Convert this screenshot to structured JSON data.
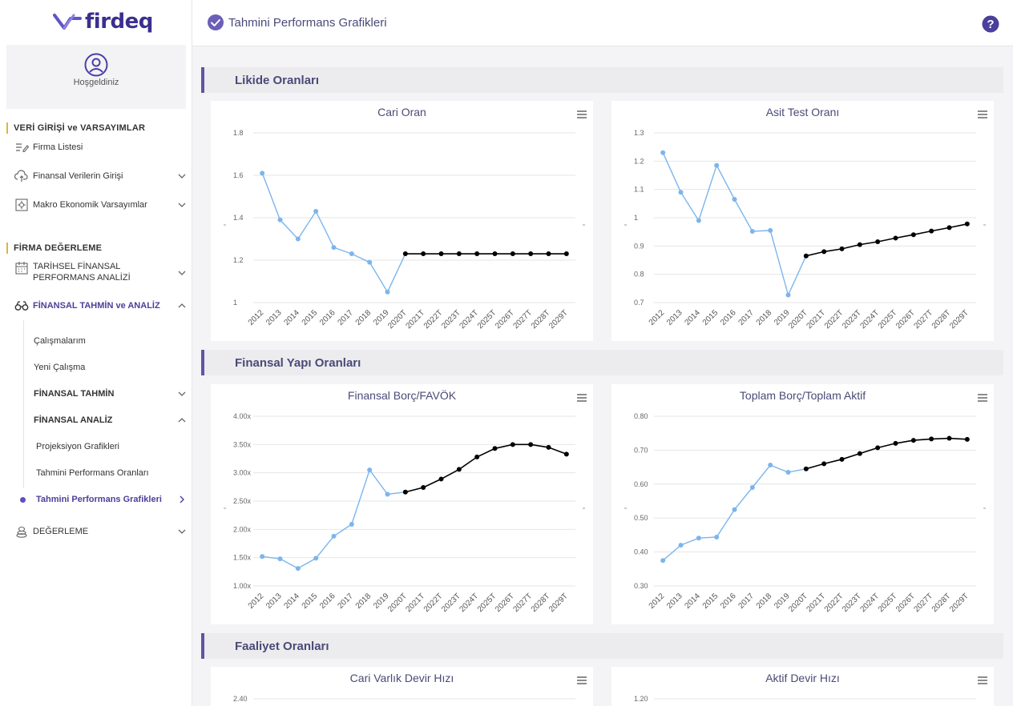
{
  "app": {
    "logo_text": "firdeq"
  },
  "sidebar": {
    "welcome": "Hoşgeldiniz",
    "sections": [
      {
        "label": "VERİ GİRİŞİ ve VARSAYIMLAR"
      },
      {
        "label": "FİRMA DEĞERLEME"
      }
    ],
    "items": [
      {
        "label": "Firma Listesi",
        "icon": "list-edit-icon"
      },
      {
        "label": "Finansal Verilerin Girişi",
        "icon": "cloud-upload-icon"
      },
      {
        "label": "Makro Ekonomik Varsayımlar",
        "icon": "chart-settings-icon"
      },
      {
        "label": "TARİHSEL FİNANSAL PERFORMANS ANALİZİ",
        "icon": "calendar-icon"
      },
      {
        "label": "FİNANSAL TAHMİN ve ANALİZ",
        "icon": "binoculars-icon"
      },
      {
        "label": "DEĞERLEME",
        "icon": "coins-icon"
      }
    ],
    "sub_items": [
      {
        "label": "Çalışmalarım"
      },
      {
        "label": "Yeni Çalışma"
      },
      {
        "label": "FİNANSAL TAHMİN"
      },
      {
        "label": "FİNANSAL ANALİZ"
      },
      {
        "label": "Projeksiyon Grafikleri"
      },
      {
        "label": "Tahmini Performans Oranları"
      },
      {
        "label": "Tahmini Performans Grafikleri"
      }
    ]
  },
  "header": {
    "title": "Tahmini Performans Grafikleri"
  },
  "sections": [
    {
      "title": "Likide Oranları"
    },
    {
      "title": "Finansal Yapı Oranları"
    },
    {
      "title": "Faaliyet Oranları"
    }
  ],
  "colors": {
    "accent": "#5f55a5",
    "historical": "#7cb5ec",
    "forecast": "#000000",
    "section_marker": "#e3b23c"
  },
  "chart_data": [
    {
      "type": "line",
      "title": "Cari Oran",
      "categories": [
        "2012",
        "2013",
        "2014",
        "2015",
        "2016",
        "2017",
        "2018",
        "2019",
        "2020T",
        "2021T",
        "2022T",
        "2023T",
        "2024T",
        "2025T",
        "2026T",
        "2027T",
        "2028T",
        "2029T"
      ],
      "series": [
        {
          "values": [
            1.61,
            1.39,
            1.3,
            1.43,
            1.26,
            1.23,
            1.19,
            1.05,
            1.23,
            null,
            null,
            null,
            null,
            null,
            null,
            null,
            null,
            null
          ]
        },
        {
          "values": [
            null,
            null,
            null,
            null,
            null,
            null,
            null,
            null,
            1.23,
            1.23,
            1.23,
            1.23,
            1.23,
            1.23,
            1.23,
            1.23,
            1.23,
            1.23
          ]
        }
      ],
      "yticks": [
        "1",
        "1.2",
        "1.4",
        "1.6",
        "1.8"
      ],
      "ylim": [
        1,
        1.8
      ]
    },
    {
      "type": "line",
      "title": "Asit Test Oranı",
      "categories": [
        "2012",
        "2013",
        "2014",
        "2015",
        "2016",
        "2017",
        "2018",
        "2019",
        "2020T",
        "2021T",
        "2022T",
        "2023T",
        "2024T",
        "2025T",
        "2026T",
        "2027T",
        "2028T",
        "2029T"
      ],
      "series": [
        {
          "values": [
            1.23,
            1.09,
            0.99,
            1.185,
            1.065,
            0.952,
            0.955,
            0.727,
            0.865,
            null,
            null,
            null,
            null,
            null,
            null,
            null,
            null,
            null
          ]
        },
        {
          "values": [
            null,
            null,
            null,
            null,
            null,
            null,
            null,
            null,
            0.865,
            0.88,
            0.89,
            0.905,
            0.915,
            0.928,
            0.94,
            0.953,
            0.965,
            0.978
          ]
        }
      ],
      "yticks": [
        "0.7",
        "0.8",
        "0.9",
        "1",
        "1.1",
        "1.2",
        "1.3"
      ],
      "ylim": [
        0.7,
        1.3
      ]
    },
    {
      "type": "line",
      "title": "Finansal Borç/FAVÖK",
      "categories": [
        "2012",
        "2013",
        "2014",
        "2015",
        "2016",
        "2017",
        "2018",
        "2019",
        "2020T",
        "2021T",
        "2022T",
        "2023T",
        "2024T",
        "2025T",
        "2026T",
        "2027T",
        "2028T",
        "2029T"
      ],
      "series": [
        {
          "values": [
            1.52,
            1.48,
            1.31,
            1.49,
            1.88,
            2.09,
            3.05,
            2.62,
            2.66,
            null,
            null,
            null,
            null,
            null,
            null,
            null,
            null,
            null
          ]
        },
        {
          "values": [
            null,
            null,
            null,
            null,
            null,
            null,
            null,
            null,
            2.66,
            2.74,
            2.89,
            3.06,
            3.28,
            3.43,
            3.5,
            3.5,
            3.45,
            3.33
          ]
        }
      ],
      "yticks": [
        "1.00x",
        "1.50x",
        "2.00x",
        "2.50x",
        "3.00x",
        "3.50x",
        "4.00x"
      ],
      "ylim": [
        1,
        4
      ]
    },
    {
      "type": "line",
      "title": "Toplam Borç/Toplam Aktif",
      "categories": [
        "2012",
        "2013",
        "2014",
        "2015",
        "2016",
        "2017",
        "2018",
        "2019",
        "2020T",
        "2021T",
        "2022T",
        "2023T",
        "2024T",
        "2025T",
        "2026T",
        "2027T",
        "2028T",
        "2029T"
      ],
      "series": [
        {
          "values": [
            0.375,
            0.42,
            0.441,
            0.444,
            0.525,
            0.59,
            0.656,
            0.635,
            0.645,
            null,
            null,
            null,
            null,
            null,
            null,
            null,
            null,
            null
          ]
        },
        {
          "values": [
            null,
            null,
            null,
            null,
            null,
            null,
            null,
            null,
            0.645,
            0.66,
            0.673,
            0.69,
            0.707,
            0.72,
            0.729,
            0.733,
            0.735,
            0.732
          ]
        }
      ],
      "yticks": [
        "0.30",
        "0.40",
        "0.50",
        "0.60",
        "0.70",
        "0.80"
      ],
      "ylim": [
        0.3,
        0.8
      ]
    },
    {
      "type": "line",
      "title": "Cari Varlık Devir Hızı",
      "categories": [],
      "series": [],
      "yticks": [
        "2.40"
      ]
    },
    {
      "type": "line",
      "title": "Aktif Devir Hızı",
      "categories": [],
      "series": [],
      "yticks": [
        "1.20"
      ]
    }
  ]
}
